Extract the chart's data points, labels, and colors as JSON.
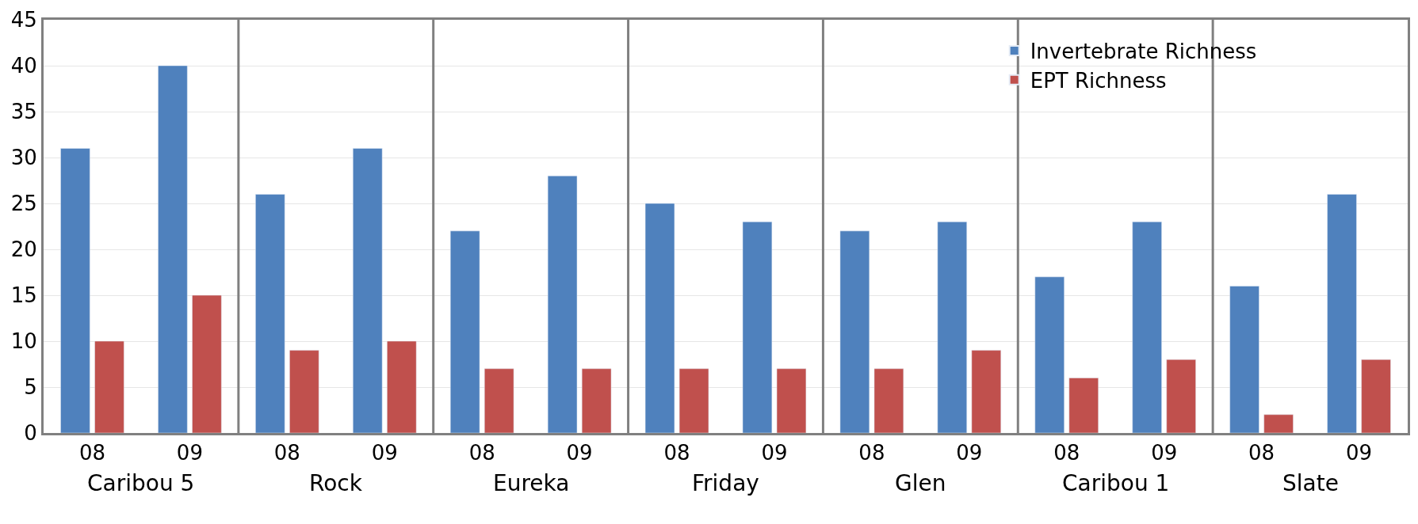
{
  "chart_data": {
    "type": "bar",
    "categories": [
      "08",
      "09",
      "08",
      "09",
      "08",
      "09",
      "08",
      "09",
      "08",
      "09",
      "08",
      "09",
      "08",
      "09"
    ],
    "series": [
      {
        "name": "Invertebrate Richness",
        "color": "#4f81bd",
        "values": [
          31,
          40,
          26,
          31,
          22,
          28,
          25,
          23,
          22,
          23,
          17,
          23,
          16,
          26
        ]
      },
      {
        "name": "EPT Richness",
        "color": "#c0504d",
        "values": [
          10,
          15,
          9,
          10,
          7,
          7,
          7,
          7,
          7,
          9,
          6,
          8,
          2,
          8
        ]
      }
    ],
    "annotations": [
      "Caribou 5",
      "Rock",
      "Eureka",
      "Friday",
      "Glen",
      "Caribou 1",
      "Slate"
    ],
    "ylim": [
      0,
      45
    ],
    "yticks": [
      0,
      5,
      10,
      15,
      20,
      25,
      30,
      35,
      40,
      45
    ],
    "grid": "y",
    "legend": "top right"
  }
}
